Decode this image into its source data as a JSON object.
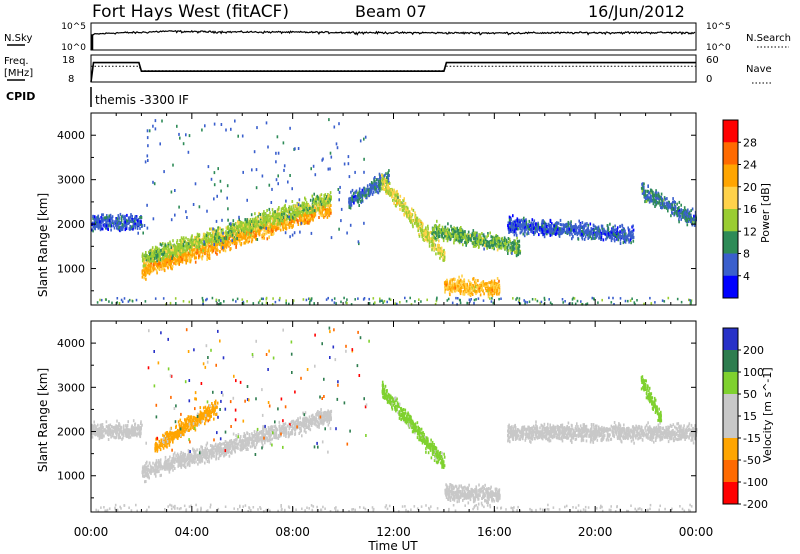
{
  "header": {
    "station": "Fort Hays West (fitACF)",
    "beam": "Beam 07",
    "date": "16/Jun/2012"
  },
  "sky_panel": {
    "left_label": "N.Sky",
    "left_ticks": [
      "10^5",
      "10^0"
    ],
    "right_label": "N.Search",
    "right_ticks": [
      "10^5",
      "10^0"
    ]
  },
  "freq_panel": {
    "left_label_1": "Freq.",
    "left_label_2": "[MHz]",
    "left_ticks": [
      "18",
      "8"
    ],
    "right_label": "Nave",
    "right_ticks": [
      "60",
      "0"
    ]
  },
  "cpid": {
    "label": "CPID",
    "value": "themis -3300 IF"
  },
  "x_axis": {
    "title": "Time UT",
    "ticks": [
      "00:00",
      "04:00",
      "08:00",
      "12:00",
      "16:00",
      "20:00",
      "00:00"
    ]
  },
  "power_panel": {
    "ylabel": "Slant Range [km]",
    "yticks": [
      "4000",
      "3000",
      "2000",
      "1000"
    ],
    "colorbar_label": "Power [dB]",
    "colorbar_ticks": [
      "28",
      "24",
      "20",
      "16",
      "12",
      "8",
      "4"
    ],
    "colors": [
      "#ff0000",
      "#ff6a00",
      "#ffa500",
      "#ffd24a",
      "#9acd32",
      "#2e8b57",
      "#3a5fcd",
      "#0000ff"
    ]
  },
  "velocity_panel": {
    "ylabel": "Slant Range [km]",
    "yticks": [
      "4000",
      "3000",
      "2000",
      "1000"
    ],
    "colorbar_label": "Velocity [m s^-1]",
    "colorbar_ticks": [
      "200",
      "100",
      "50",
      "15",
      "-15",
      "-50",
      "-100",
      "-200"
    ],
    "colors": [
      "#2832c8",
      "#2e7d4f",
      "#7fd12f",
      "#c8c8c8",
      "#c8c8c8",
      "#ffa500",
      "#ff6a00",
      "#ff0000"
    ]
  },
  "chart_data": [
    {
      "type": "line",
      "title": "",
      "x": [
        0,
        24
      ],
      "xlim": [
        0,
        24
      ],
      "series": [
        {
          "name": "N.Sky",
          "x": [
            0,
            0.1,
            1,
            2,
            3,
            4,
            6,
            8,
            10,
            12,
            14,
            16,
            18,
            20,
            22,
            24
          ],
          "values": [
            1,
            800,
            1500,
            1800,
            3000,
            2500,
            2200,
            2000,
            1800,
            1600,
            1500,
            1400,
            1500,
            1600,
            1700,
            1600
          ]
        }
      ]
    },
    {
      "type": "line",
      "title": "",
      "xlim": [
        0,
        24
      ],
      "ylim": [
        8,
        18
      ],
      "series": [
        {
          "name": "Freq.",
          "x": [
            0,
            0.1,
            1.9,
            2.0,
            14.0,
            14.1,
            24
          ],
          "values": [
            8,
            15.2,
            15.2,
            12.0,
            12.0,
            15.2,
            15.2
          ]
        },
        {
          "name": "Nave",
          "x": [
            0,
            1.9,
            2.0,
            14.0,
            14.1,
            24
          ],
          "values": [
            35,
            35,
            25,
            25,
            35,
            35
          ]
        }
      ]
    },
    {
      "type": "heatmap",
      "title": "",
      "xlabel": "Time UT",
      "ylabel": "Slant Range [km]",
      "xlim": [
        0,
        24
      ],
      "ylim": [
        180,
        4500
      ],
      "colorbar": "Power [dB]",
      "bands": [
        {
          "x": [
            0,
            2.0
          ],
          "y_center": [
            2050,
            2050
          ],
          "power": 6
        },
        {
          "x": [
            2.0,
            9.5
          ],
          "y_center": [
            1000,
            2400
          ],
          "power": 22
        },
        {
          "x": [
            2.0,
            9.5
          ],
          "y_center": [
            1250,
            2600
          ],
          "power": 14
        },
        {
          "x": [
            10.2,
            11.8
          ],
          "y_center": [
            2500,
            3100
          ],
          "power": 8
        },
        {
          "x": [
            11.5,
            14.0
          ],
          "y_center": [
            3000,
            1300
          ],
          "power": 16
        },
        {
          "x": [
            13.5,
            17.0
          ],
          "y_center": [
            1900,
            1500
          ],
          "power": 12
        },
        {
          "x": [
            14.0,
            16.2
          ],
          "y_center": [
            650,
            600
          ],
          "power": 20
        },
        {
          "x": [
            16.5,
            21.5
          ],
          "y_center": [
            2000,
            1800
          ],
          "power": 6
        },
        {
          "x": [
            21.8,
            24.0
          ],
          "y_center": [
            2800,
            2100
          ],
          "power": 8
        }
      ]
    },
    {
      "type": "heatmap",
      "title": "",
      "xlabel": "Time UT",
      "ylabel": "Slant Range [km]",
      "xlim": [
        0,
        24
      ],
      "ylim": [
        180,
        4500
      ],
      "colorbar": "Velocity [m s^-1]",
      "bands": [
        {
          "x": [
            0,
            2.0
          ],
          "y_center": [
            2050,
            2050
          ],
          "velocity": 0
        },
        {
          "x": [
            2.0,
            9.5
          ],
          "y_center": [
            1100,
            2400
          ],
          "velocity": 0
        },
        {
          "x": [
            2.5,
            5.0
          ],
          "y_center": [
            1700,
            2600
          ],
          "velocity": -40
        },
        {
          "x": [
            11.5,
            14.0
          ],
          "y_center": [
            3000,
            1300
          ],
          "velocity": 40
        },
        {
          "x": [
            14.0,
            16.2
          ],
          "y_center": [
            650,
            600
          ],
          "velocity": -10
        },
        {
          "x": [
            16.5,
            24.0
          ],
          "y_center": [
            2000,
            2000
          ],
          "velocity": 0
        },
        {
          "x": [
            21.8,
            22.6
          ],
          "y_center": [
            3200,
            2300
          ],
          "velocity": 60
        }
      ]
    }
  ]
}
